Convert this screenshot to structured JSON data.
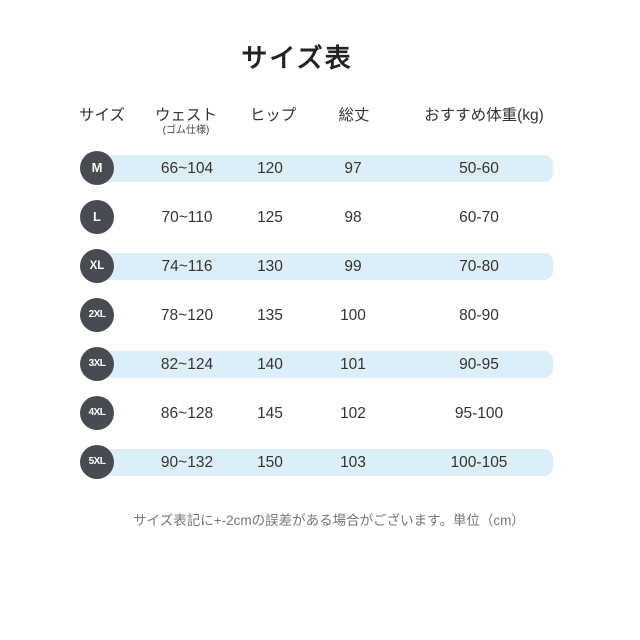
{
  "title": "サイズ表",
  "table": {
    "headers": {
      "size": "サイズ",
      "waist": "ウェスト",
      "waist_sub": "(ゴム仕様)",
      "hip": "ヒップ",
      "length": "総丈",
      "weight": "おすすめ体重(kg)"
    },
    "rows": [
      {
        "size": "M",
        "waist": "66~104",
        "hip": "120",
        "length": "97",
        "weight": "50-60"
      },
      {
        "size": "L",
        "waist": "70~110",
        "hip": "125",
        "length": "98",
        "weight": "60-70"
      },
      {
        "size": "XL",
        "waist": "74~116",
        "hip": "130",
        "length": "99",
        "weight": "70-80"
      },
      {
        "size": "2XL",
        "waist": "78~120",
        "hip": "135",
        "length": "100",
        "weight": "80-90"
      },
      {
        "size": "3XL",
        "waist": "82~124",
        "hip": "140",
        "length": "101",
        "weight": "90-95"
      },
      {
        "size": "4XL",
        "waist": "86~128",
        "hip": "145",
        "length": "102",
        "weight": "95-100"
      },
      {
        "size": "5XL",
        "waist": "90~132",
        "hip": "150",
        "length": "103",
        "weight": "100-105"
      }
    ]
  },
  "footer_note": "サイズ表記に+-2cmの誤差がある場合がございます。単位（cm）",
  "colors": {
    "row_band": "#dceef8",
    "size_badge": "#474b52",
    "text": "#333333",
    "footer_text": "#767676"
  },
  "chart_data": {
    "type": "table",
    "title": "サイズ表",
    "columns": [
      "サイズ",
      "ウェスト(ゴム仕様)",
      "ヒップ",
      "総丈",
      "おすすめ体重(kg)"
    ],
    "rows": [
      [
        "M",
        "66~104",
        "120",
        "97",
        "50-60"
      ],
      [
        "L",
        "70~110",
        "125",
        "98",
        "60-70"
      ],
      [
        "XL",
        "74~116",
        "130",
        "99",
        "70-80"
      ],
      [
        "2XL",
        "78~120",
        "135",
        "100",
        "80-90"
      ],
      [
        "3XL",
        "82~124",
        "140",
        "101",
        "90-95"
      ],
      [
        "4XL",
        "86~128",
        "145",
        "102",
        "95-100"
      ],
      [
        "5XL",
        "90~132",
        "150",
        "103",
        "100-105"
      ]
    ],
    "note": "サイズ表記に+-2cmの誤差がある場合がございます。単位（cm）",
    "unit": "cm"
  }
}
